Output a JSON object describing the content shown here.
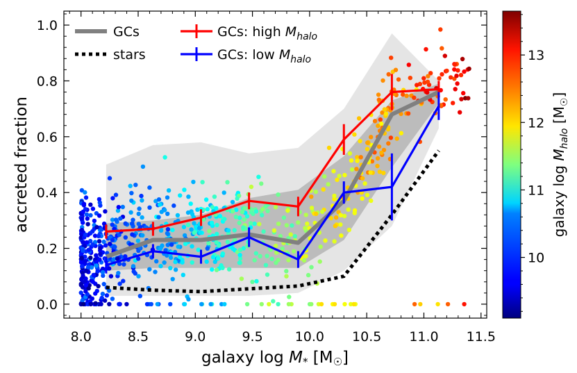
{
  "chart_data": {
    "type": "line",
    "xlabel": "galaxy log M* [M☉]",
    "ylabel": "accreted fraction",
    "xlim": [
      7.85,
      11.55
    ],
    "ylim": [
      -0.05,
      1.05
    ],
    "x_ticks": [
      "8.0",
      "8.5",
      "9.0",
      "9.5",
      "10.0",
      "10.5",
      "11.0",
      "11.5"
    ],
    "y_ticks": [
      "0.0",
      "0.2",
      "0.4",
      "0.6",
      "0.8",
      "1.0"
    ],
    "x": [
      8.22,
      8.63,
      9.05,
      9.47,
      9.9,
      10.3,
      10.72,
      11.13
    ],
    "series": [
      {
        "name": "GCs",
        "color": "#808080",
        "values": [
          0.17,
          0.23,
          0.23,
          0.25,
          0.22,
          0.37,
          0.68,
          0.76
        ],
        "band_inner_low": [
          0.12,
          0.13,
          0.13,
          0.13,
          0.13,
          0.23,
          0.49,
          0.72
        ],
        "band_inner_high": [
          0.29,
          0.3,
          0.32,
          0.38,
          0.41,
          0.53,
          0.73,
          0.79
        ],
        "band_outer_low": [
          0.03,
          0.03,
          0.03,
          0.03,
          0.04,
          0.12,
          0.28,
          0.63
        ],
        "band_outer_high": [
          0.5,
          0.57,
          0.58,
          0.54,
          0.56,
          0.7,
          0.97,
          0.8
        ]
      },
      {
        "name": "stars",
        "color": "#000000",
        "style": "dotted",
        "values": [
          0.06,
          0.05,
          0.045,
          0.055,
          0.065,
          0.1,
          0.32,
          0.55
        ]
      },
      {
        "name": "GCs: high M_halo",
        "color": "#ff0000",
        "values": [
          0.26,
          0.27,
          0.31,
          0.37,
          0.35,
          0.59,
          0.76,
          0.77
        ],
        "errors": [
          0.025,
          0.025,
          0.03,
          0.03,
          0.035,
          0.055,
          0.065,
          0.03
        ]
      },
      {
        "name": "GCs: low M_halo",
        "color": "#0000ff",
        "values": [
          0.14,
          0.19,
          0.17,
          0.24,
          0.16,
          0.4,
          0.42,
          0.71
        ],
        "errors": [
          0.03,
          0.025,
          0.025,
          0.035,
          0.03,
          0.04,
          0.12,
          0.05
        ]
      }
    ],
    "scatter_note": "individual galaxies coloured by halo mass",
    "scatter_seed": 12345,
    "colorbar": {
      "label": "galaxy log M_halo [M☉]",
      "range": [
        9.1,
        13.65
      ],
      "ticks": [
        "10",
        "11",
        "12",
        "13"
      ],
      "colormap": "jet"
    },
    "legend": {
      "placement": "top-left",
      "entries": [
        {
          "label": "GCs",
          "color": "#808080"
        },
        {
          "label": "stars",
          "color": "#000000"
        },
        {
          "label": "GCs: high M",
          "sub": "halo",
          "color": "#ff0000"
        },
        {
          "label": "GCs: low M",
          "sub": "halo",
          "color": "#0000ff"
        }
      ]
    }
  }
}
